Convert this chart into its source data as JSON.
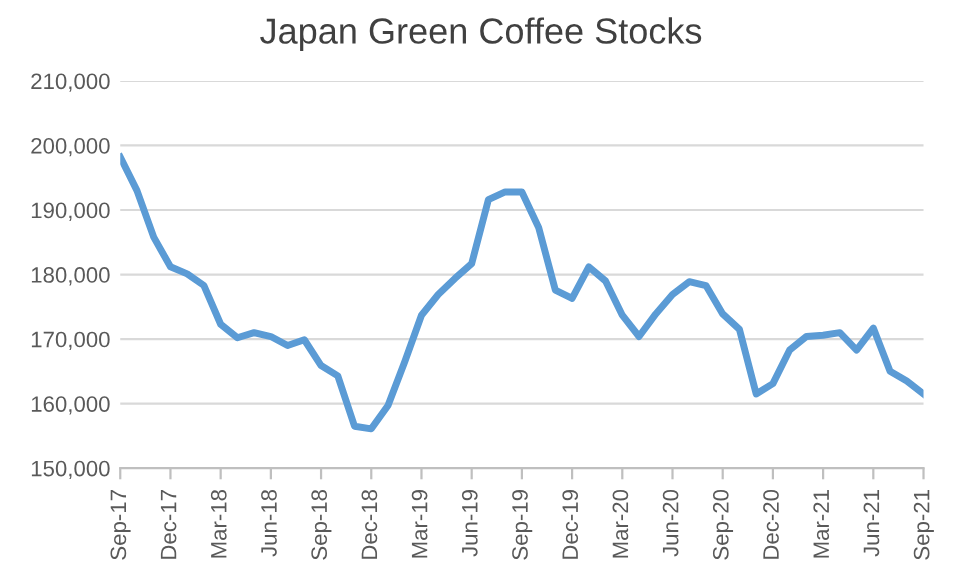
{
  "chart_data": {
    "type": "line",
    "title": "Japan Green Coffee Stocks",
    "categories": [
      "Sep-17",
      null,
      null,
      "Dec-17",
      null,
      null,
      "Mar-18",
      null,
      null,
      "Jun-18",
      null,
      null,
      "Sep-18",
      null,
      null,
      "Dec-18",
      null,
      null,
      "Mar-19",
      null,
      null,
      "Jun-19",
      null,
      null,
      "Sep-19",
      null,
      null,
      "Dec-19",
      null,
      null,
      "Mar-20",
      null,
      null,
      "Jun-20",
      null,
      null,
      "Sep-20",
      null,
      null,
      "Dec-20",
      null,
      null,
      "Mar-21",
      null,
      null,
      "Jun-21",
      null,
      null,
      "Sep-21"
    ],
    "series": [
      {
        "color": "#5b9bd5",
        "values": [
          198200,
          193000,
          185800,
          181200,
          180100,
          178300,
          172300,
          170200,
          171000,
          170400,
          169000,
          169900,
          165900,
          164300,
          156500,
          156100,
          159700,
          166500,
          173700,
          176900,
          179400,
          181700,
          191600,
          192800,
          192800,
          187300,
          177600,
          176300,
          181200,
          179000,
          173700,
          170400,
          173900,
          176900,
          178900,
          178300,
          173900,
          171500,
          161500,
          163100,
          168300,
          170400,
          170600,
          171000,
          168300,
          171700,
          165000,
          163500,
          161500
        ]
      }
    ],
    "ylim": [
      150000,
      210000
    ],
    "yticks": [
      {
        "value": 150000,
        "label": "150,000"
      },
      {
        "value": 160000,
        "label": "160,000"
      },
      {
        "value": 170000,
        "label": "170,000"
      },
      {
        "value": 180000,
        "label": "180,000"
      },
      {
        "value": 190000,
        "label": "190,000"
      },
      {
        "value": 200000,
        "label": "200,000"
      },
      {
        "value": 210000,
        "label": "210,000"
      }
    ],
    "grid": "y",
    "legend": false,
    "marker": "none",
    "line_style": "solid"
  }
}
